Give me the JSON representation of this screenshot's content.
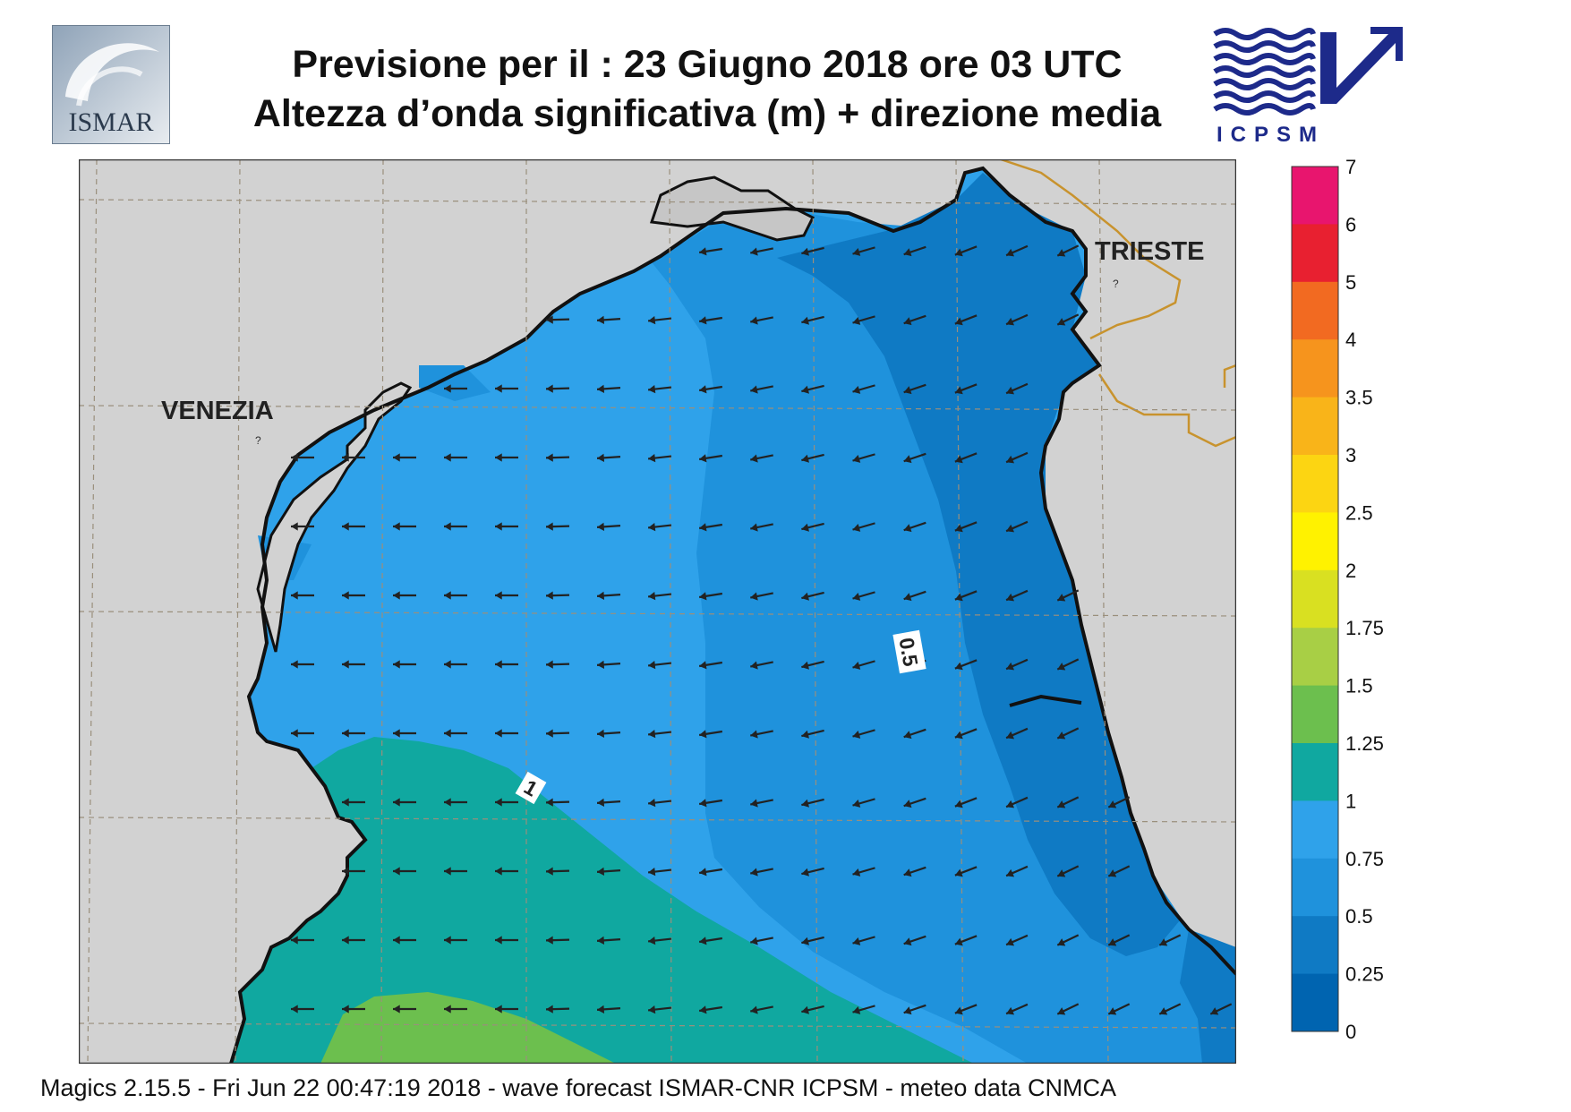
{
  "header": {
    "title_line1": "Previsione per il  :  23   Giugno  2018   ore 03 UTC",
    "title_line2": "Altezza d’onda significativa (m) + direzione media"
  },
  "logos": {
    "left": {
      "icon": "ismar-logo",
      "text": "ISMAR"
    },
    "right": {
      "icon": "icpsm-logo",
      "text": "ICPSM"
    }
  },
  "map": {
    "places": [
      {
        "name": "VENEZIA"
      },
      {
        "name": "TRIESTE"
      }
    ],
    "contour_labels": [
      "0.5",
      "1"
    ],
    "colors": {
      "land": "#d2d2d2",
      "sea_025_05": "#0f7ac4",
      "sea_05_075": "#1f92dc",
      "sea_075_1": "#2fa2ea",
      "sea_1_125": "#10a8a0",
      "sea_125_15": "#6cbf4e",
      "coast": "#111111",
      "border": "#c8932e",
      "grid": "#9a8f7c"
    },
    "wave_direction": "arrows pointing west / south-west"
  },
  "legend": {
    "labels": [
      "7",
      "6",
      "5",
      "4",
      "3.5",
      "3",
      "2.5",
      "2",
      "1.75",
      "1.5",
      "1.25",
      "1",
      "0.75",
      "0.5",
      "0.25",
      "0"
    ],
    "colors": [
      "#e8156e",
      "#e82030",
      "#f26a21",
      "#f6941d",
      "#f9b419",
      "#fcd512",
      "#fff200",
      "#d9e021",
      "#a8cf45",
      "#6cbf4e",
      "#10a8a0",
      "#2fa2ea",
      "#1f92dc",
      "#0f7ac4",
      "#0064b0"
    ]
  },
  "footer": {
    "text": "Magics 2.15.5 - Fri Jun 22 00:47:19 2018 - wave forecast  ISMAR-CNR  ICPSM - meteo data   CNMCA"
  }
}
